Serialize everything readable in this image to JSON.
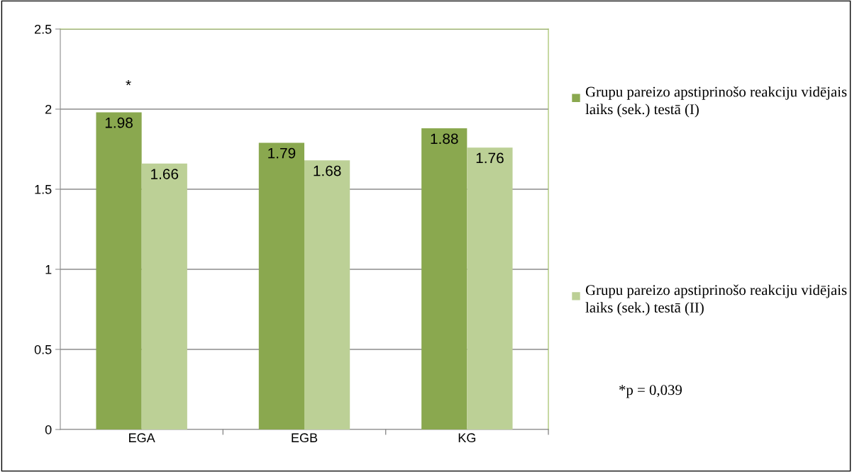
{
  "chart_data": {
    "type": "bar",
    "categories": [
      "EGA",
      "EGB",
      "KG"
    ],
    "series": [
      {
        "name": "Grupu pareizo apstiprinošo reakciju vidējais laiks (sek.) testā (I)",
        "color": "#8aa84f",
        "values": [
          1.98,
          1.79,
          1.88
        ]
      },
      {
        "name": "Grupu pareizo apstiprinošo reakciju vidējais laiks (sek.) testā (II)",
        "color": "#bcd096",
        "values": [
          1.66,
          1.68,
          1.76
        ]
      }
    ],
    "ylim": [
      0,
      2.5
    ],
    "yticks": [
      0,
      0.5,
      1,
      1.5,
      2,
      2.5
    ],
    "grid": "y",
    "legend": "right",
    "data_labels": true,
    "annotations": [
      "*",
      "*p = 0,039"
    ]
  }
}
